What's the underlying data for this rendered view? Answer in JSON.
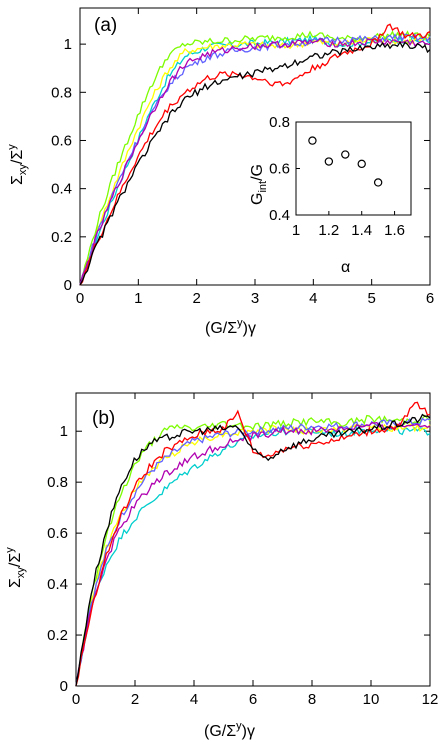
{
  "chart_data": [
    {
      "type": "line",
      "panel_label": "(a)",
      "xlabel": "(G/Σ^y)γ",
      "ylabel": "Σxy/Σy",
      "xlim": [
        0,
        6
      ],
      "ylim": [
        0,
        1.15
      ],
      "xticks": [
        "0",
        "1",
        "2",
        "3",
        "4",
        "5",
        "6"
      ],
      "yticks": [
        "0",
        "0.2",
        "0.4",
        "0.6",
        "0.8",
        "1"
      ],
      "grid": false,
      "series": [
        {
          "color": "#00cdcd",
          "points": [
            [
              0,
              0
            ],
            [
              0.3,
              0.2
            ],
            [
              0.6,
              0.38
            ],
            [
              0.9,
              0.55
            ],
            [
              1.2,
              0.72
            ],
            [
              1.5,
              0.86
            ],
            [
              1.8,
              0.95
            ],
            [
              2.2,
              0.99
            ],
            [
              2.8,
              1.0
            ],
            [
              3.5,
              1.01
            ],
            [
              4.0,
              1.02
            ],
            [
              4.5,
              1.0
            ],
            [
              5.0,
              1.01
            ],
            [
              5.5,
              1.02
            ],
            [
              6.0,
              1.01
            ]
          ]
        },
        {
          "color": "#ffff00",
          "points": [
            [
              0,
              0
            ],
            [
              0.3,
              0.23
            ],
            [
              0.6,
              0.42
            ],
            [
              0.9,
              0.6
            ],
            [
              1.2,
              0.76
            ],
            [
              1.5,
              0.89
            ],
            [
              1.8,
              0.97
            ],
            [
              2.2,
              0.99
            ],
            [
              2.8,
              1.0
            ],
            [
              3.5,
              0.99
            ],
            [
              4.0,
              1.01
            ],
            [
              4.5,
              1.0
            ],
            [
              5.0,
              1.02
            ],
            [
              5.5,
              1.01
            ],
            [
              6.0,
              1.02
            ]
          ]
        },
        {
          "color": "#7cfc00",
          "points": [
            [
              0,
              0
            ],
            [
              0.3,
              0.26
            ],
            [
              0.6,
              0.47
            ],
            [
              0.9,
              0.65
            ],
            [
              1.2,
              0.82
            ],
            [
              1.5,
              0.95
            ],
            [
              1.8,
              1.0
            ],
            [
              2.2,
              1.01
            ],
            [
              2.8,
              1.02
            ],
            [
              3.5,
              1.03
            ],
            [
              4.0,
              1.04
            ],
            [
              4.5,
              1.02
            ],
            [
              5.0,
              1.03
            ],
            [
              5.5,
              1.04
            ],
            [
              6.0,
              1.03
            ]
          ]
        },
        {
          "color": "#6060ff",
          "points": [
            [
              0,
              0
            ],
            [
              0.3,
              0.22
            ],
            [
              0.6,
              0.4
            ],
            [
              0.9,
              0.56
            ],
            [
              1.2,
              0.7
            ],
            [
              1.5,
              0.82
            ],
            [
              1.8,
              0.9
            ],
            [
              2.2,
              0.95
            ],
            [
              2.8,
              0.98
            ],
            [
              3.5,
              1.0
            ],
            [
              4.0,
              1.01
            ],
            [
              4.5,
              1.02
            ],
            [
              5.0,
              1.02
            ],
            [
              5.5,
              1.03
            ],
            [
              6.0,
              1.02
            ]
          ]
        },
        {
          "color": "#b000b0",
          "points": [
            [
              0,
              0
            ],
            [
              0.3,
              0.21
            ],
            [
              0.6,
              0.39
            ],
            [
              0.9,
              0.55
            ],
            [
              1.2,
              0.7
            ],
            [
              1.5,
              0.83
            ],
            [
              1.8,
              0.92
            ],
            [
              2.2,
              0.96
            ],
            [
              2.8,
              0.99
            ],
            [
              3.5,
              1.0
            ],
            [
              4.0,
              1.01
            ],
            [
              4.5,
              1.0
            ],
            [
              5.0,
              1.01
            ],
            [
              5.5,
              1.01
            ],
            [
              6.0,
              1.0
            ]
          ]
        },
        {
          "color": "#ff0000",
          "points": [
            [
              0,
              0
            ],
            [
              0.3,
              0.18
            ],
            [
              0.6,
              0.34
            ],
            [
              0.9,
              0.49
            ],
            [
              1.2,
              0.62
            ],
            [
              1.5,
              0.73
            ],
            [
              1.8,
              0.8
            ],
            [
              2.2,
              0.86
            ],
            [
              2.6,
              0.88
            ],
            [
              3.0,
              0.86
            ],
            [
              3.5,
              0.83
            ],
            [
              4.0,
              0.9
            ],
            [
              4.5,
              0.96
            ],
            [
              5.0,
              1.0
            ],
            [
              5.3,
              1.08
            ],
            [
              5.6,
              1.03
            ],
            [
              6.0,
              1.04
            ]
          ]
        },
        {
          "color": "#000000",
          "points": [
            [
              0,
              0
            ],
            [
              0.3,
              0.17
            ],
            [
              0.6,
              0.32
            ],
            [
              0.9,
              0.46
            ],
            [
              1.2,
              0.58
            ],
            [
              1.5,
              0.69
            ],
            [
              1.8,
              0.77
            ],
            [
              2.2,
              0.83
            ],
            [
              2.6,
              0.86
            ],
            [
              3.0,
              0.88
            ],
            [
              3.5,
              0.91
            ],
            [
              4.0,
              0.95
            ],
            [
              4.5,
              0.97
            ],
            [
              5.0,
              0.99
            ],
            [
              5.5,
              1.0
            ],
            [
              6.0,
              0.98
            ]
          ]
        }
      ],
      "inset": {
        "type": "scatter",
        "xlabel": "α",
        "ylabel": "G_int/G",
        "xlim": [
          1,
          1.7
        ],
        "ylim": [
          0.4,
          0.8
        ],
        "xticks": [
          "1",
          "1.2",
          "1.4",
          "1.6"
        ],
        "yticks": [
          "0.4",
          "0.6",
          "0.8"
        ],
        "x": [
          1.1,
          1.2,
          1.3,
          1.4,
          1.5
        ],
        "y": [
          0.72,
          0.63,
          0.66,
          0.62,
          0.54
        ]
      }
    },
    {
      "type": "line",
      "panel_label": "(b)",
      "xlabel": "(G/Σ^y)γ",
      "ylabel": "Σxy/Σy",
      "xlim": [
        0,
        12
      ],
      "ylim": [
        0,
        1.15
      ],
      "xticks": [
        "0",
        "2",
        "4",
        "6",
        "8",
        "10",
        "12"
      ],
      "yticks": [
        "0",
        "0.2",
        "0.4",
        "0.6",
        "0.8",
        "1"
      ],
      "grid": false,
      "series": [
        {
          "color": "#00cdcd",
          "points": [
            [
              0,
              0
            ],
            [
              0.5,
              0.3
            ],
            [
              1,
              0.47
            ],
            [
              1.5,
              0.58
            ],
            [
              2,
              0.66
            ],
            [
              2.5,
              0.72
            ],
            [
              3,
              0.77
            ],
            [
              3.5,
              0.82
            ],
            [
              4,
              0.86
            ],
            [
              5,
              0.93
            ],
            [
              6,
              0.98
            ],
            [
              7,
              1.0
            ],
            [
              8,
              1.0
            ],
            [
              9,
              0.99
            ],
            [
              10,
              1.01
            ],
            [
              11,
              1.0
            ],
            [
              12,
              1.0
            ]
          ]
        },
        {
          "color": "#ffff00",
          "points": [
            [
              0,
              0
            ],
            [
              0.5,
              0.33
            ],
            [
              1,
              0.53
            ],
            [
              1.5,
              0.67
            ],
            [
              2,
              0.77
            ],
            [
              2.5,
              0.84
            ],
            [
              3,
              0.89
            ],
            [
              3.5,
              0.93
            ],
            [
              4,
              0.96
            ],
            [
              5,
              0.99
            ],
            [
              6,
              1.0
            ],
            [
              7,
              1.01
            ],
            [
              8,
              1.0
            ],
            [
              9,
              1.01
            ],
            [
              10,
              1.02
            ],
            [
              11,
              1.01
            ],
            [
              12,
              1.02
            ]
          ]
        },
        {
          "color": "#7cfc00",
          "points": [
            [
              0,
              0
            ],
            [
              0.5,
              0.35
            ],
            [
              1,
              0.58
            ],
            [
              1.5,
              0.75
            ],
            [
              2,
              0.87
            ],
            [
              2.5,
              0.95
            ],
            [
              3,
              1.0
            ],
            [
              3.5,
              1.02
            ],
            [
              4,
              1.01
            ],
            [
              5,
              1.03
            ],
            [
              6,
              1.02
            ],
            [
              7,
              1.03
            ],
            [
              8,
              1.04
            ],
            [
              9,
              1.03
            ],
            [
              10,
              1.05
            ],
            [
              11,
              1.04
            ],
            [
              12,
              1.05
            ]
          ]
        },
        {
          "color": "#6060ff",
          "points": [
            [
              0,
              0
            ],
            [
              0.5,
              0.32
            ],
            [
              1,
              0.52
            ],
            [
              1.5,
              0.66
            ],
            [
              2,
              0.76
            ],
            [
              2.5,
              0.84
            ],
            [
              3,
              0.89
            ],
            [
              3.5,
              0.93
            ],
            [
              4,
              0.96
            ],
            [
              5,
              0.99
            ],
            [
              6,
              1.0
            ],
            [
              7,
              1.01
            ],
            [
              8,
              1.02
            ],
            [
              9,
              1.02
            ],
            [
              10,
              1.03
            ],
            [
              11,
              1.03
            ],
            [
              12,
              1.04
            ]
          ]
        },
        {
          "color": "#b000b0",
          "points": [
            [
              0,
              0
            ],
            [
              0.5,
              0.3
            ],
            [
              1,
              0.49
            ],
            [
              1.5,
              0.62
            ],
            [
              2,
              0.71
            ],
            [
              2.5,
              0.78
            ],
            [
              3,
              0.83
            ],
            [
              3.5,
              0.87
            ],
            [
              4,
              0.9
            ],
            [
              5,
              0.95
            ],
            [
              6,
              0.98
            ],
            [
              7,
              1.0
            ],
            [
              8,
              1.0
            ],
            [
              9,
              1.01
            ],
            [
              10,
              1.02
            ],
            [
              11,
              1.02
            ],
            [
              12,
              1.03
            ]
          ]
        },
        {
          "color": "#ff0000",
          "points": [
            [
              0,
              0
            ],
            [
              0.5,
              0.29
            ],
            [
              1,
              0.5
            ],
            [
              1.5,
              0.66
            ],
            [
              2,
              0.78
            ],
            [
              2.5,
              0.86
            ],
            [
              3,
              0.92
            ],
            [
              3.5,
              0.95
            ],
            [
              4,
              0.98
            ],
            [
              4.5,
              1.0
            ],
            [
              5,
              1.01
            ],
            [
              5.5,
              1.07
            ],
            [
              6,
              0.92
            ],
            [
              6.5,
              0.9
            ],
            [
              7,
              0.93
            ],
            [
              8,
              0.95
            ],
            [
              9,
              0.97
            ],
            [
              10,
              1.0
            ],
            [
              11,
              1.02
            ],
            [
              11.5,
              1.11
            ],
            [
              12,
              1.06
            ]
          ]
        },
        {
          "color": "#000000",
          "points": [
            [
              0,
              0
            ],
            [
              0.5,
              0.36
            ],
            [
              1,
              0.6
            ],
            [
              1.5,
              0.78
            ],
            [
              2,
              0.89
            ],
            [
              2.5,
              0.95
            ],
            [
              3,
              0.97
            ],
            [
              3.5,
              0.99
            ],
            [
              4,
              1.0
            ],
            [
              5,
              1.01
            ],
            [
              5.5,
              1.02
            ],
            [
              6,
              0.92
            ],
            [
              6.5,
              0.89
            ],
            [
              7,
              0.93
            ],
            [
              8,
              0.97
            ],
            [
              9,
              0.99
            ],
            [
              10,
              1.01
            ],
            [
              11,
              1.03
            ],
            [
              12,
              1.06
            ]
          ]
        }
      ]
    }
  ]
}
